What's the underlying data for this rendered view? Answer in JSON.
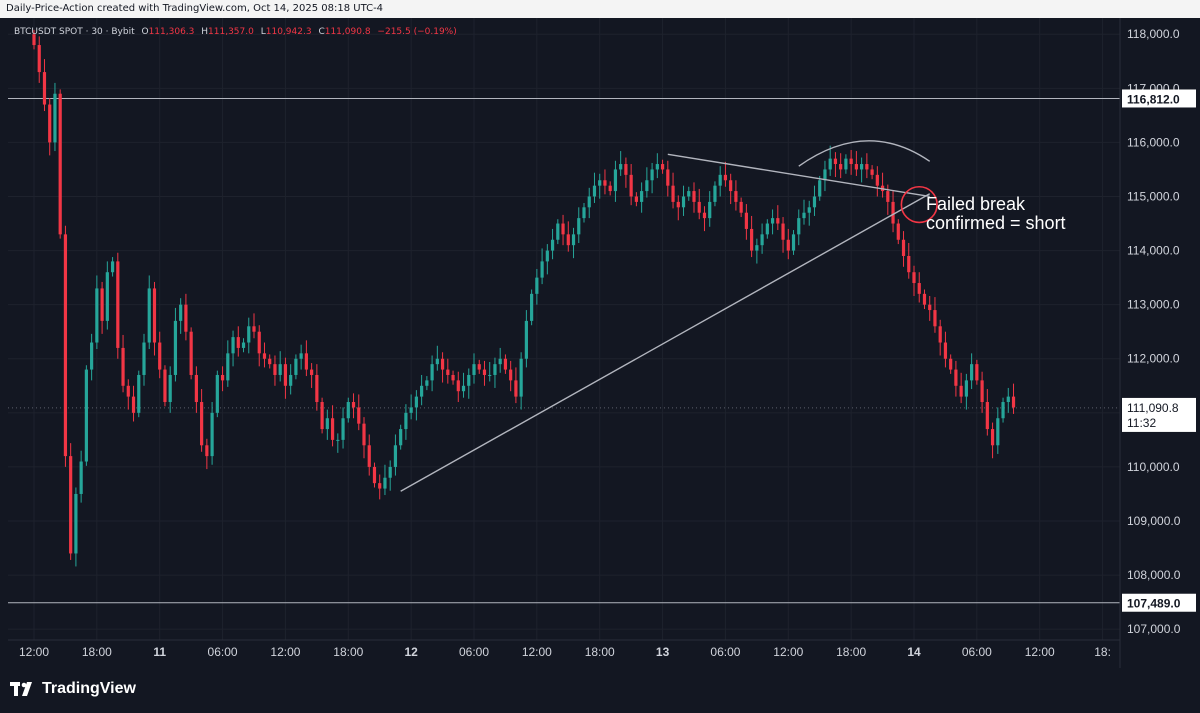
{
  "header": {
    "text": "Daily-Price-Action created with TradingView.com, Oct 14, 2025 08:18 UTC-4"
  },
  "legend": {
    "symbol": "BTCUSDT SPOT · 30 · Bybit",
    "open_label": "O",
    "open": "111,306.3",
    "high_label": "H",
    "high": "111,357.0",
    "low_label": "L",
    "low": "110,942.3",
    "close_label": "C",
    "close": "111,090.8",
    "change": "−215.5 (−0.19%)"
  },
  "brand": {
    "name": "TradingView",
    "logo_icon": "tradingview-logo-icon"
  },
  "colors": {
    "bg": "#131722",
    "up": "#26a69a",
    "down": "#f23645",
    "grid": "#1e222d",
    "text": "#d1d4dc",
    "line": "#b2b5be",
    "circle": "#f23645"
  },
  "chart_data": {
    "type": "candlestick",
    "symbol": "BTCUSDT",
    "interval": "30",
    "ylim": [
      106800,
      118300
    ],
    "yticks": [
      "107,000.0",
      "108,000.0",
      "109,000.0",
      "110,000.0",
      "111,000.0",
      "112,000.0",
      "113,000.0",
      "114,000.0",
      "115,000.0",
      "116,000.0",
      "117,000.0",
      "118,000.0"
    ],
    "yticks_values": [
      107000,
      108000,
      109000,
      110000,
      111000,
      112000,
      113000,
      114000,
      115000,
      116000,
      117000,
      118000
    ],
    "xticks": [
      "12:00",
      "18:00",
      "11",
      "06:00",
      "12:00",
      "18:00",
      "12",
      "06:00",
      "12:00",
      "18:00",
      "13",
      "06:00",
      "12:00",
      "18:00",
      "14",
      "06:00",
      "12:00",
      "18:"
    ],
    "xticks_index": [
      0,
      12,
      24,
      36,
      48,
      60,
      72,
      84,
      96,
      108,
      120,
      132,
      144,
      156,
      168,
      180,
      192,
      204
    ],
    "bar_count_visible": 210,
    "horizontal_levels": [
      {
        "price": 116812.0,
        "label": "116,812.0"
      },
      {
        "price": 107489.0,
        "label": "107,489.0"
      }
    ],
    "last_price": {
      "price": 111090.8,
      "label": "111,090.8",
      "countdown": "11:32"
    },
    "annotation": {
      "text_line1": "Failed break",
      "text_line2": "confirmed = short"
    },
    "trendlines": [
      {
        "name": "rising-support",
        "from": [
          70,
          109550
        ],
        "to": [
          171,
          115050
        ]
      },
      {
        "name": "descending-resistance",
        "from": [
          121,
          115780
        ],
        "to": [
          171,
          115000
        ]
      }
    ],
    "arc": {
      "name": "rounded-top",
      "from": [
        146,
        115560
      ],
      "peak": [
        159,
        116050
      ],
      "to": [
        171,
        115650
      ]
    },
    "circle": {
      "name": "break-circle",
      "center": [
        169,
        114850
      ],
      "radius_price": 330
    },
    "candles_close": [
      117800,
      117300,
      116700,
      116000,
      116900,
      114300,
      110200,
      108400,
      109500,
      110100,
      111800,
      112300,
      113300,
      112700,
      113600,
      113800,
      112200,
      111500,
      111300,
      111000,
      111700,
      112300,
      113300,
      112300,
      111800,
      111200,
      111700,
      112700,
      113000,
      112500,
      111700,
      111200,
      110400,
      110200,
      111000,
      111700,
      111600,
      112100,
      112400,
      112200,
      112300,
      112600,
      112500,
      112100,
      112000,
      111900,
      111700,
      111900,
      111500,
      111700,
      112000,
      112100,
      111800,
      111700,
      111200,
      110700,
      110900,
      110500,
      110500,
      110900,
      111200,
      111100,
      110800,
      110400,
      110000,
      109700,
      109600,
      109800,
      110000,
      110400,
      110700,
      111000,
      111100,
      111300,
      111500,
      111600,
      111900,
      112000,
      111800,
      111700,
      111600,
      111400,
      111500,
      111700,
      111900,
      111800,
      111700,
      111700,
      111900,
      112000,
      111800,
      111600,
      111300,
      112000,
      112700,
      113200,
      113500,
      113800,
      114000,
      114200,
      114500,
      114300,
      114100,
      114300,
      114600,
      114800,
      115000,
      115200,
      115300,
      115200,
      115100,
      115500,
      115600,
      115400,
      115000,
      114900,
      115100,
      115300,
      115500,
      115600,
      115500,
      115200,
      114900,
      114800,
      115000,
      115100,
      114900,
      114700,
      114600,
      114900,
      115200,
      115400,
      115300,
      115100,
      114900,
      114700,
      114400,
      114000,
      114100,
      114300,
      114500,
      114600,
      114500,
      114200,
      114000,
      114300,
      114600,
      114700,
      114800,
      115000,
      115300,
      115500,
      115700,
      115600,
      115500,
      115700,
      115600,
      115500,
      115600,
      115500,
      115400,
      115200,
      115100,
      114900,
      114500,
      114200,
      113900,
      113600,
      113400,
      113200,
      113000,
      112900,
      112600,
      112300,
      112000,
      111800,
      111500,
      111300,
      111600,
      111900,
      111600,
      111200,
      110700,
      110400,
      110900,
      111200,
      111300,
      111100
    ]
  }
}
